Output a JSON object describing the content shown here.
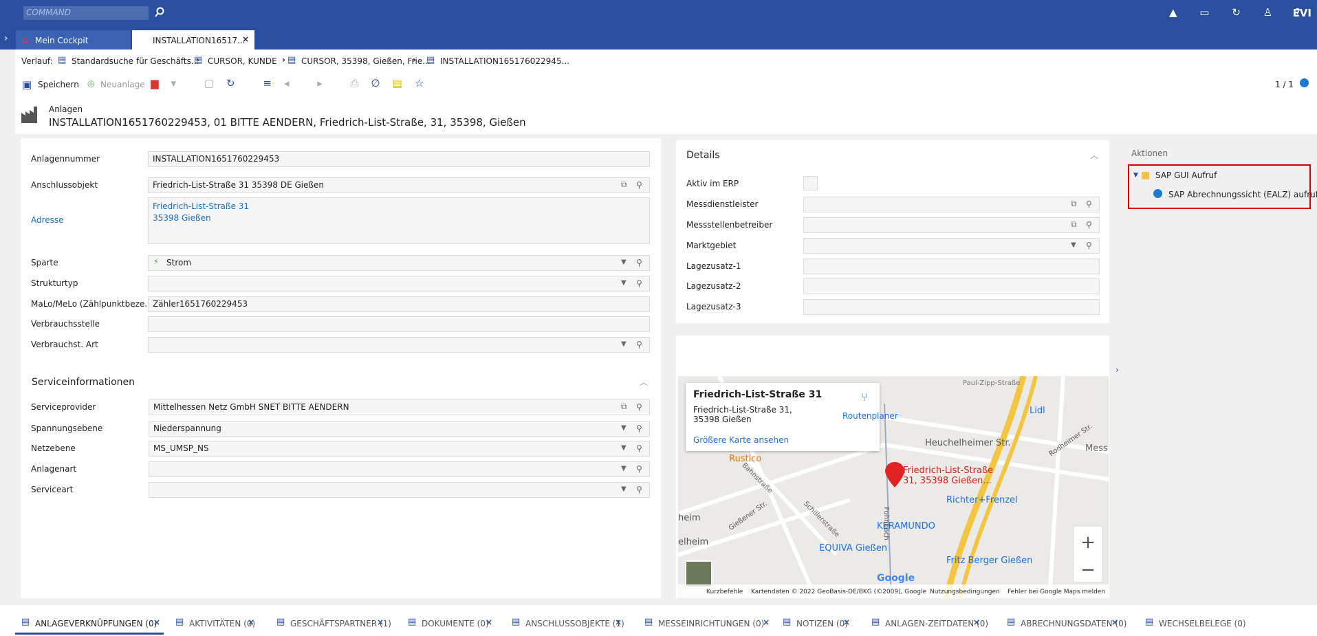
{
  "topbar": {
    "command": "COMMAND",
    "brand": "EVI"
  },
  "tabs": [
    "Mein Cockpit",
    "INSTALLATION16517..."
  ],
  "breadcrumb": {
    "label": "Verlauf:",
    "items": [
      "Standardsuche für Geschäfts...",
      "CURSOR, KUNDE",
      "CURSOR, 35398, Gießen, Frie...",
      "INSTALLATION165176022945..."
    ]
  },
  "toolbar": {
    "save": "Speichern",
    "new": "Neuanlage",
    "pager": "1 / 1"
  },
  "header": {
    "type": "Anlagen",
    "title": "INSTALLATION1651760229453, 01 BITTE AENDERN, Friedrich-List-Straße, 31, 35398, Gießen"
  },
  "form": {
    "fields": [
      {
        "label": "Anlagennummer",
        "value": "INSTALLATION1651760229453"
      },
      {
        "label": "Anschlussobjekt",
        "value": "Friedrich-List-Straße 31 35398 DE Gießen",
        "open": true,
        "search": true
      },
      {
        "label": "Adresse",
        "lines": [
          "Friedrich-List-Straße 31",
          "35398 Gießen"
        ]
      },
      {
        "label": "Sparte",
        "value": "Strom",
        "dropdown": true,
        "search": true
      },
      {
        "label": "Strukturtyp",
        "dropdown": true,
        "search": true
      },
      {
        "label": "MaLo/MeLo (Zählpunktbeze...",
        "value": "Zähler1651760229453"
      },
      {
        "label": "Verbrauchsstelle"
      },
      {
        "label": "Verbrauchst. Art",
        "dropdown": true,
        "search": true
      }
    ]
  },
  "service": {
    "title": "Serviceinformationen",
    "fields": [
      {
        "label": "Serviceprovider",
        "value": "Mittelhessen Netz GmbH SNET BITTE AENDERN",
        "open": true,
        "search": true
      },
      {
        "label": "Spannungsebene",
        "value": "Niederspannung",
        "dropdown": true,
        "search": true
      },
      {
        "label": "Netzebene",
        "value": "MS_UMSP_NS",
        "dropdown": true,
        "search": true
      },
      {
        "label": "Anlagenart",
        "dropdown": true,
        "search": true
      },
      {
        "label": "Serviceart",
        "dropdown": true,
        "search": true
      }
    ]
  },
  "details": {
    "title": "Details",
    "fields": [
      {
        "label": "Aktiv im ERP",
        "checkbox": true
      },
      {
        "label": "Messdienstleister",
        "open": true,
        "search": true
      },
      {
        "label": "Messstellenbetreiber",
        "open": true,
        "search": true
      },
      {
        "label": "Marktgebiet",
        "dropdown": true,
        "search": true
      },
      {
        "label": "Lagezusatz-1"
      },
      {
        "label": "Lagezusatz-2"
      },
      {
        "label": "Lagezusatz-3"
      }
    ]
  },
  "map": {
    "card_title": "Friedrich-List-Straße 31",
    "card_address": "Friedrich-List-Straße 31, 35398 Gießen",
    "route": "Routenplaner",
    "larger": "Größere Karte ansehen",
    "pin": "Friedrich-List-Straße 31, 35398 Gießen...",
    "places": [
      "Rustico",
      "Lidl",
      "Heuchelheimer Str.",
      "Richter+Frenzel",
      "KERAMUNDO",
      "EQUIVA Gießen",
      "Fritz Berger Gießen",
      "Fohnbach",
      "Gießener Str.",
      "Bahnstraße",
      "Schillerstraße",
      "Rodheimer Str.",
      "Mess",
      "elheim",
      "heim",
      "Paul-Zipp-Straße"
    ],
    "logo": "Google",
    "footer": [
      "Kurzbefehle",
      "Kartendaten © 2022 GeoBasis-DE/BKG (©2009), Google",
      "Nutzungsbedingungen",
      "Fehler bei Google Maps melden"
    ]
  },
  "actions": {
    "title": "Aktionen",
    "folder": "SAP GUI Aufruf",
    "item": "SAP Abrechnungssicht (EALZ) aufrufen"
  },
  "bottom_tabs": [
    "ANLAGEVERKNÜPFUNGEN (0)",
    "AKTIVITÄTEN (0)",
    "GESCHÄFTSPARTNER (1)",
    "DOKUMENTE (0)",
    "ANSCHLUSSOBJEKTE (1)",
    "MESSEINRICHTUNGEN (0)",
    "NOTIZEN (0)",
    "ANLAGEN-ZEITDATEN (0)",
    "ABRECHNUNGSDATEN (0)",
    "WECHSELBELEGE (0)"
  ]
}
